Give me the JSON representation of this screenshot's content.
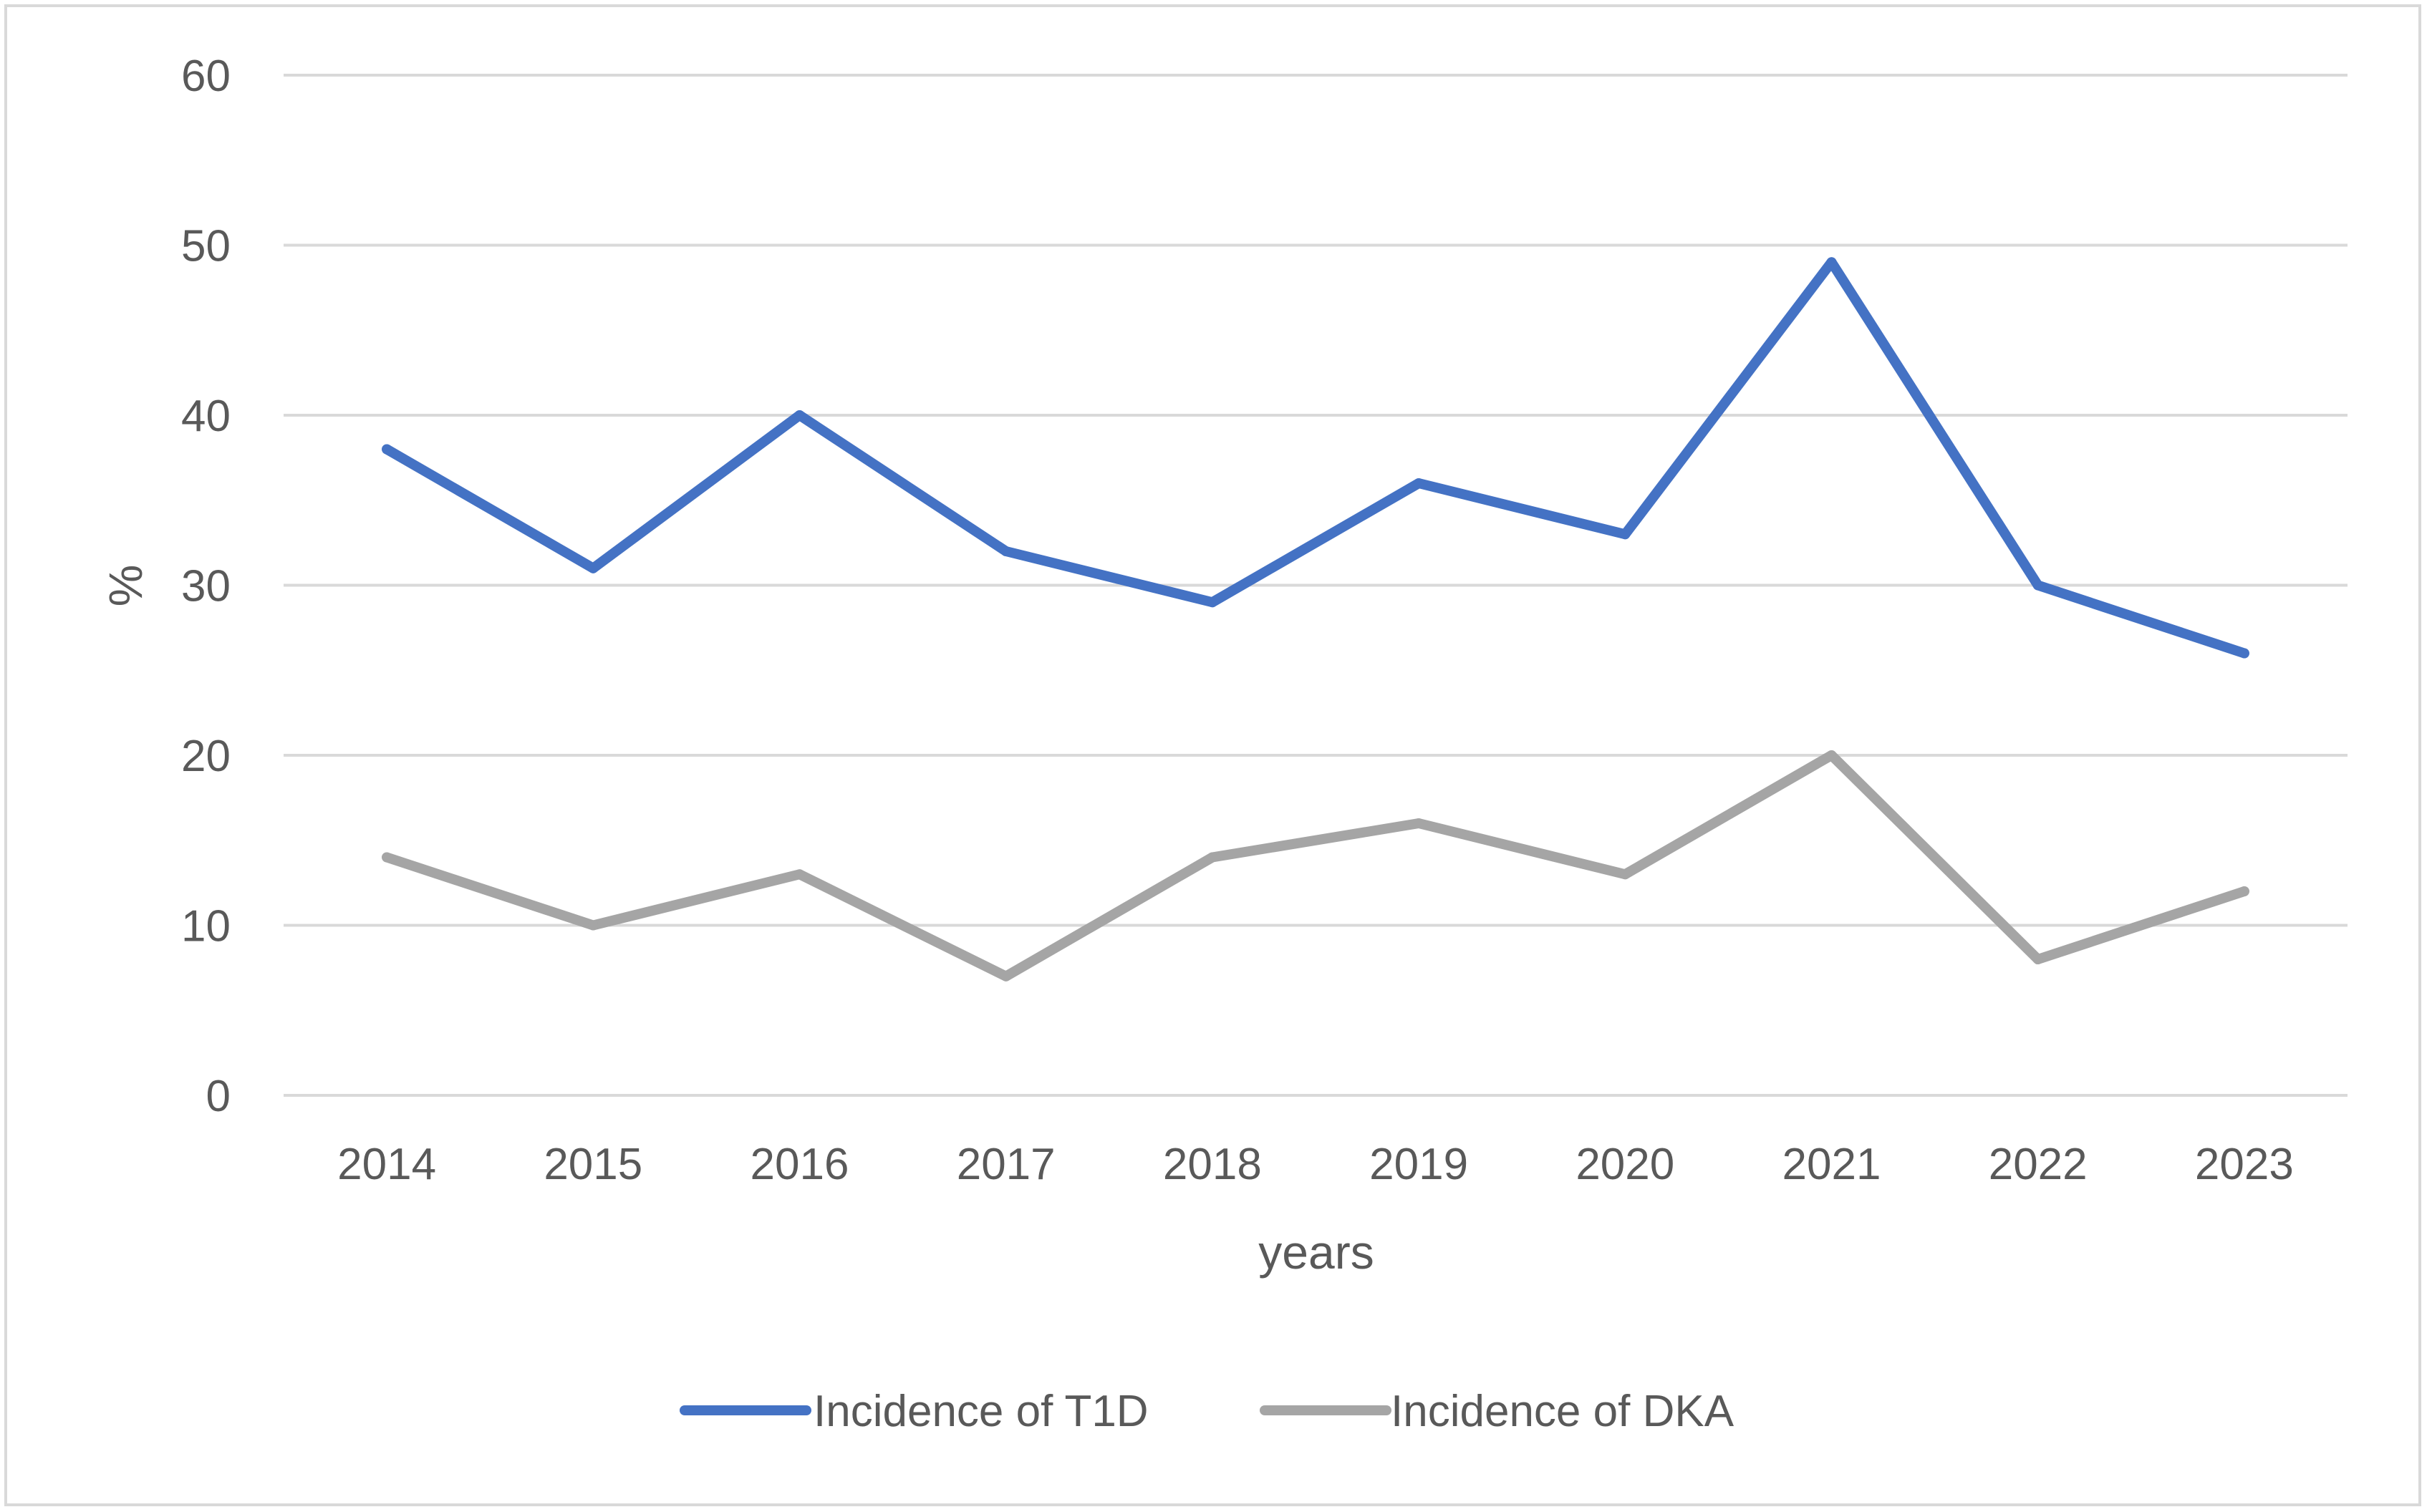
{
  "chart_data": {
    "type": "line",
    "title": "",
    "xlabel": "years",
    "ylabel": "%",
    "ylim": [
      0,
      60
    ],
    "yticks": [
      0,
      10,
      20,
      30,
      40,
      50,
      60
    ],
    "grid": true,
    "legend_position": "bottom",
    "categories": [
      "2014",
      "2015",
      "2016",
      "2017",
      "2018",
      "2019",
      "2020",
      "2021",
      "2022",
      "2023"
    ],
    "series": [
      {
        "name": "Incidence of T1D",
        "color": "#4472c4",
        "values": [
          38,
          31,
          40,
          32,
          29,
          36,
          33,
          49,
          30,
          26
        ]
      },
      {
        "name": "Incidence of DKA",
        "color": "#a5a5a5",
        "values": [
          14,
          10,
          13,
          7,
          14,
          16,
          13,
          20,
          8,
          12
        ]
      }
    ]
  }
}
